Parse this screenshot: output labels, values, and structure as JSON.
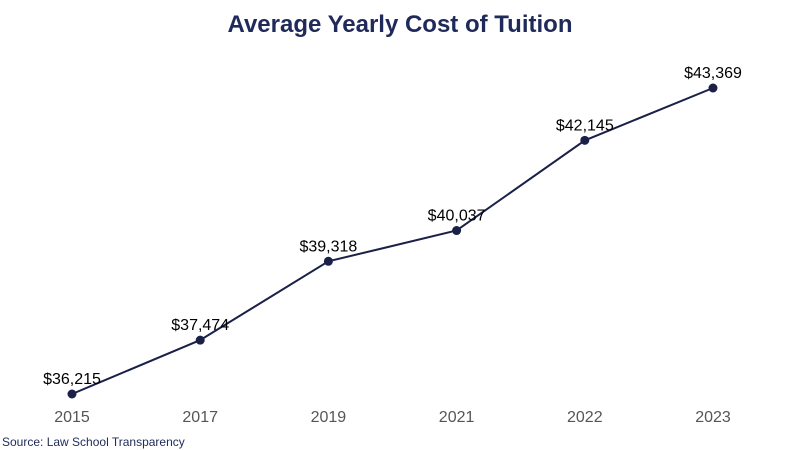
{
  "chart_data": {
    "type": "line",
    "title": "Average Yearly Cost of Tuition",
    "xlabel": "",
    "ylabel": "",
    "categories": [
      "2015",
      "2017",
      "2019",
      "2021",
      "2022",
      "2023"
    ],
    "series": [
      {
        "values": [
          36215,
          37474,
          39318,
          40037,
          42145,
          43369
        ],
        "labels": [
          "$36,215",
          "$37,474",
          "$39,318",
          "$40,037",
          "$42,145",
          "$43,369"
        ]
      }
    ],
    "ylim": [
      36215,
      43369
    ],
    "grid": false,
    "legend": "none"
  },
  "source": "Source: Law School Transparency",
  "colors": {
    "title": "#1f2a5a",
    "line": "#1a2048",
    "marker": "#1a2048"
  }
}
